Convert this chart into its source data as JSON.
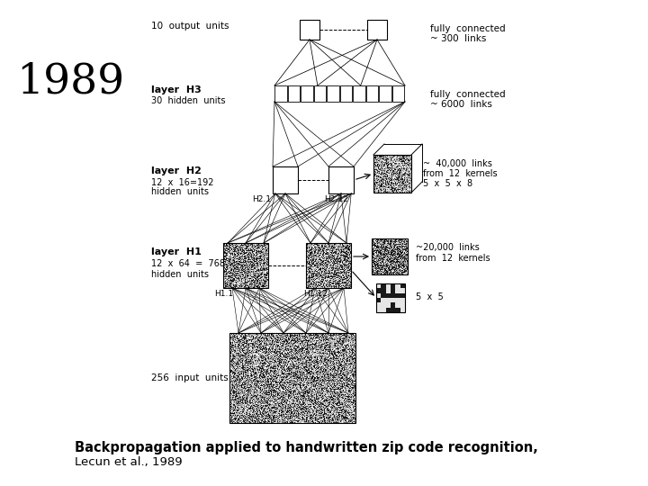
{
  "background_color": "#ffffff",
  "year_text": "1989",
  "title_text": "Backpropagation applied to handwritten zip code recognition,",
  "subtitle_text": "Lecun et al., 1989",
  "label_10_output": "10  output  units",
  "label_h3": "layer  H3",
  "label_h3_sub": "30  hidden  units",
  "label_h2": "layer  H2",
  "label_h2_sub1": "12  x  16=192",
  "label_h2_sub2": "hidden  units",
  "label_h1": "layer  H1",
  "label_h1_sub1": "12  x  64  =  768",
  "label_h1_sub2": "hidden  units",
  "label_input": "256  input  units",
  "label_fc1": "fully  connected",
  "label_fc1_sub": "~ 300  links",
  "label_fc2": "fully  connected",
  "label_fc2_sub": "~ 6000  links",
  "label_40k": "~  40,000  links",
  "label_40k_k": "from  12  kernels",
  "label_40k_s": "5  x  5  x  8",
  "label_20k": "~20,000  links",
  "label_20k_k": "from  12  kernels",
  "label_5x5": "5  x  5",
  "label_h21": "H2.1",
  "label_h212": "H2.12",
  "label_h11": "H1.1",
  "label_h112": "H1.12"
}
